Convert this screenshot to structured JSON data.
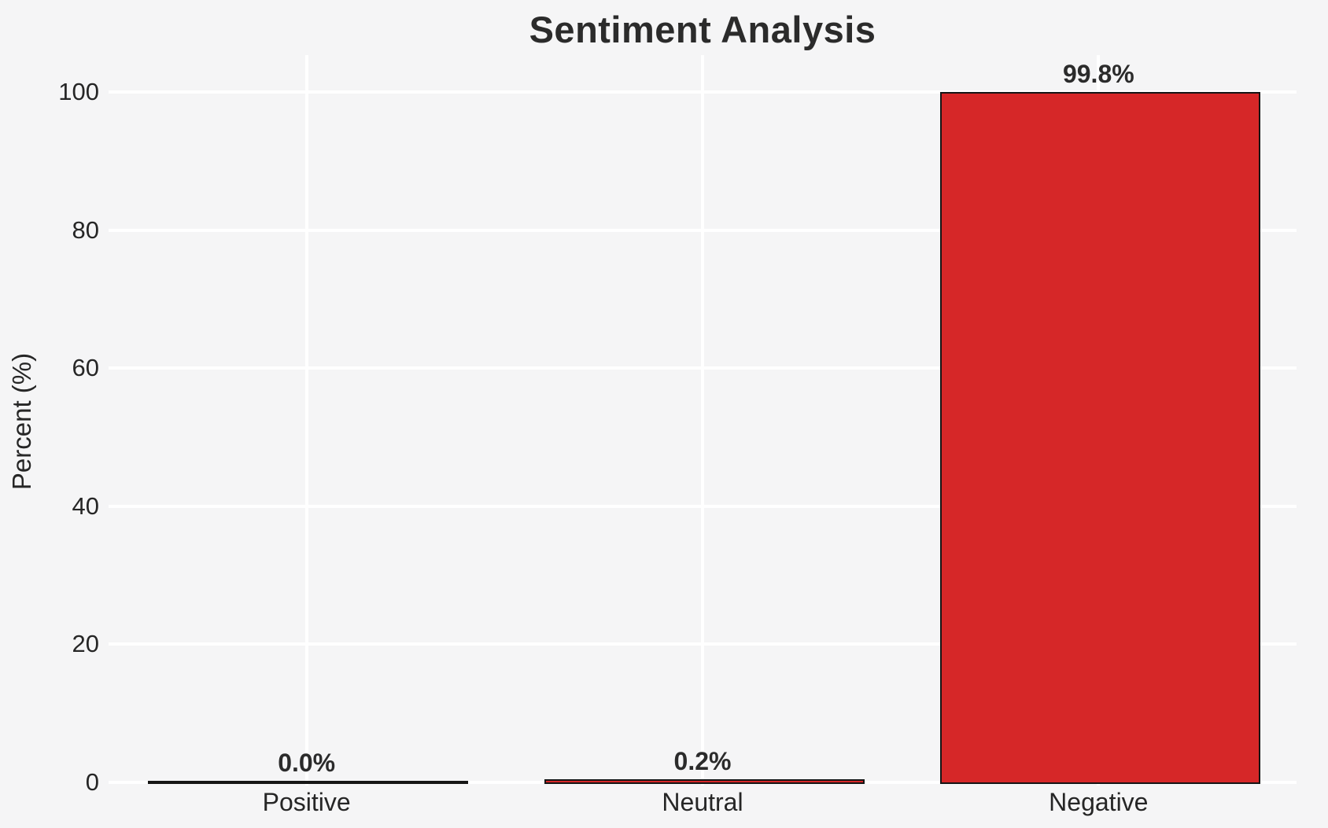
{
  "chart_data": {
    "type": "bar",
    "title": "Sentiment Analysis",
    "categories": [
      "Positive",
      "Neutral",
      "Negative"
    ],
    "values": [
      0.0,
      0.2,
      99.8
    ],
    "bar_labels": [
      "0.0%",
      "0.2%",
      "99.8%"
    ],
    "xlabel": "",
    "ylabel": "Percent (%)",
    "yticks": [
      0,
      20,
      40,
      60,
      80,
      100
    ],
    "ylim": [
      0,
      105
    ],
    "grid": true,
    "legend": false,
    "colors": {
      "bar_fill": "#d62728",
      "bar_edge": "#151515",
      "background": "#f5f5f6",
      "gridline": "#ffffff",
      "text": "#262626"
    }
  }
}
